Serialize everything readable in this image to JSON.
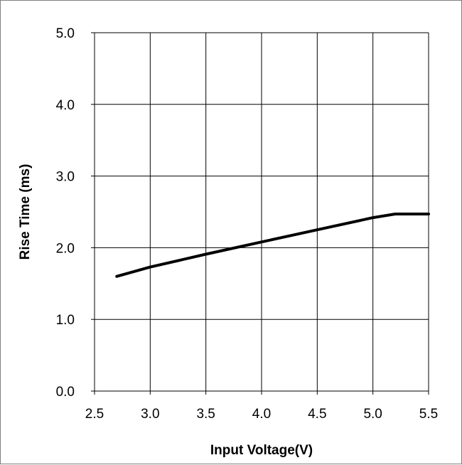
{
  "chart_data": {
    "type": "line",
    "title": "",
    "xlabel": "Input Voltage(V)",
    "ylabel": "Rise Time (ms)",
    "xlim": [
      2.5,
      5.5
    ],
    "ylim": [
      0.0,
      5.0
    ],
    "x_ticks": [
      2.5,
      3.0,
      3.5,
      4.0,
      4.5,
      5.0,
      5.5
    ],
    "y_ticks": [
      0.0,
      1.0,
      2.0,
      3.0,
      4.0,
      5.0
    ],
    "x_tick_labels": [
      "2.5",
      "3.0",
      "3.5",
      "4.0",
      "4.5",
      "5.0",
      "5.5"
    ],
    "y_tick_labels": [
      "0.0",
      "1.0",
      "2.0",
      "3.0",
      "4.0",
      "5.0"
    ],
    "grid": true,
    "legend": "none",
    "series": [
      {
        "color": "#000000",
        "x": [
          2.7,
          3.0,
          3.5,
          4.0,
          4.5,
          5.0,
          5.2,
          5.3,
          5.5
        ],
        "y": [
          1.6,
          1.73,
          1.91,
          2.08,
          2.25,
          2.42,
          2.47,
          2.47,
          2.47
        ]
      }
    ]
  }
}
